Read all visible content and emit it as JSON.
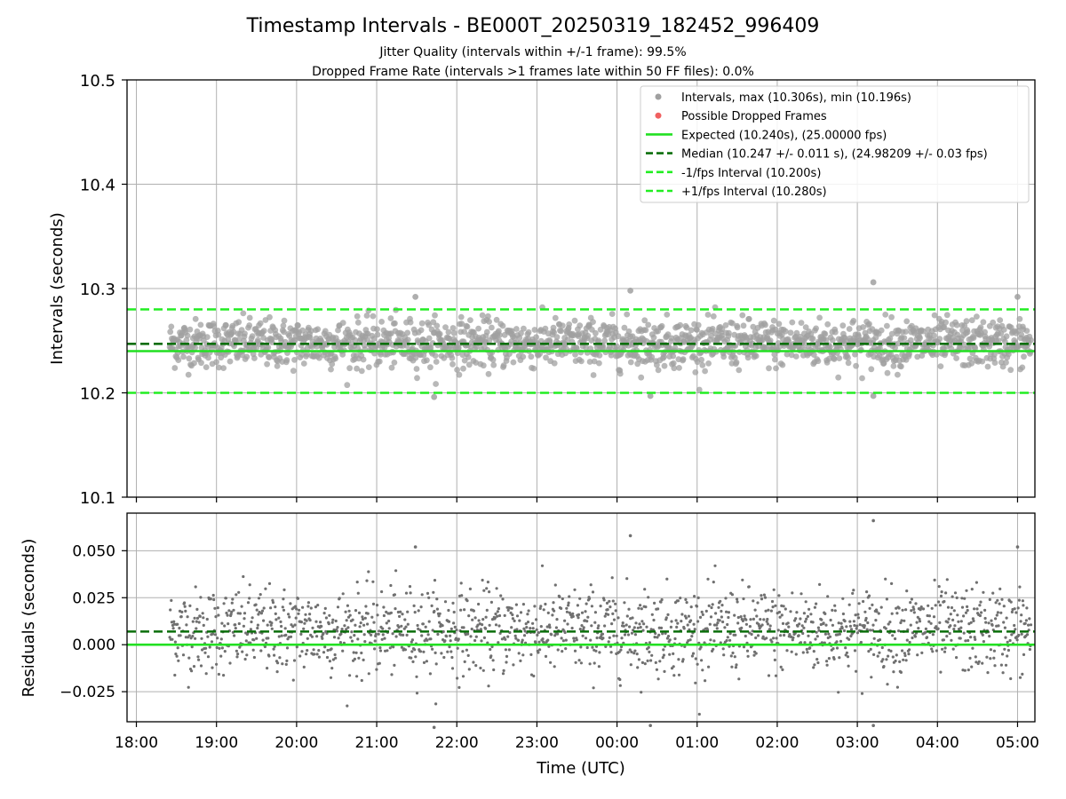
{
  "figure": {
    "title": "Timestamp Intervals - BE000T_20250319_182452_996409",
    "subtitle1": "Jitter Quality (intervals within +/-1 frame): 99.5%",
    "subtitle2": "Dropped Frame Rate (intervals >1 frames late within 50 FF files): 0.0%"
  },
  "chart_data": [
    {
      "type": "scatter",
      "ylabel": "Intervals (seconds)",
      "ylim": [
        10.1,
        10.5
      ],
      "yticks": [
        "10.1",
        "10.2",
        "10.3",
        "10.4",
        "10.5"
      ],
      "grid": true,
      "legend_position": "top-right",
      "legend": [
        {
          "label": "Intervals, max (10.306s), min (10.196s)",
          "kind": "marker",
          "color": "#a0a0a0"
        },
        {
          "label": "Possible Dropped Frames",
          "kind": "marker",
          "color": "#f06060"
        },
        {
          "label": "Expected (10.240s), (25.00000 fps)",
          "kind": "solid",
          "color": "#22e022"
        },
        {
          "label": "Median (10.247 +/- 0.011 s), (24.98209 +/- 0.03 fps)",
          "kind": "dashed",
          "color": "#0a6e0a"
        },
        {
          "label": "-1/fps Interval (10.200s)",
          "kind": "dashed",
          "color": "#22ee22"
        },
        {
          "label": "+1/fps Interval (10.280s)",
          "kind": "dashed",
          "color": "#22ee22"
        }
      ],
      "reference_lines": [
        {
          "name": "Expected",
          "y": 10.24,
          "style": "solid",
          "color": "#22e022"
        },
        {
          "name": "Median",
          "y": 10.247,
          "style": "dashed",
          "color": "#0a6e0a"
        },
        {
          "name": "-1/fps Interval",
          "y": 10.2,
          "style": "dashed",
          "color": "#22ee22"
        },
        {
          "name": "+1/fps Interval",
          "y": 10.28,
          "style": "dashed",
          "color": "#22ee22"
        }
      ],
      "series": [
        {
          "name": "Intervals",
          "color": "#a0a0a0",
          "x_range": [
            "18:25",
            "05:10"
          ],
          "y_median": 10.247,
          "y_max": 10.306,
          "y_min": 10.196,
          "notable_points": [
            [
              "21:29",
              10.292
            ],
            [
              "21:43",
              10.196
            ],
            [
              "00:10",
              10.298
            ],
            [
              "00:25",
              10.197
            ],
            [
              "03:12",
              10.306
            ],
            [
              "03:12",
              10.197
            ],
            [
              "05:00",
              10.292
            ]
          ]
        }
      ]
    },
    {
      "type": "scatter",
      "xlabel": "Time (UTC)",
      "ylabel": "Residuals (seconds)",
      "ylim": [
        -0.041,
        0.07
      ],
      "yticks": [
        "−0.025",
        "0.000",
        "0.025",
        "0.050"
      ],
      "xticks": [
        "18:00",
        "19:00",
        "20:00",
        "21:00",
        "22:00",
        "23:00",
        "00:00",
        "01:00",
        "02:00",
        "03:00",
        "04:00",
        "05:00"
      ],
      "xlim": [
        "17:53",
        "05:13"
      ],
      "grid": true,
      "reference_lines": [
        {
          "name": "Expected",
          "y": 0.0,
          "style": "solid",
          "color": "#22e022"
        },
        {
          "name": "Median",
          "y": 0.007,
          "style": "dashed",
          "color": "#0a6e0a"
        }
      ],
      "series": [
        {
          "name": "Residuals",
          "color": "#707070",
          "x_range": [
            "18:25",
            "05:10"
          ],
          "y_median": 0.007,
          "y_max": 0.066,
          "y_min": -0.044,
          "notable_points": [
            [
              "21:29",
              0.052
            ],
            [
              "21:43",
              -0.044
            ],
            [
              "00:10",
              0.058
            ],
            [
              "00:25",
              -0.043
            ],
            [
              "03:12",
              0.066
            ],
            [
              "03:12",
              -0.043
            ],
            [
              "05:00",
              0.052
            ]
          ]
        }
      ]
    }
  ]
}
